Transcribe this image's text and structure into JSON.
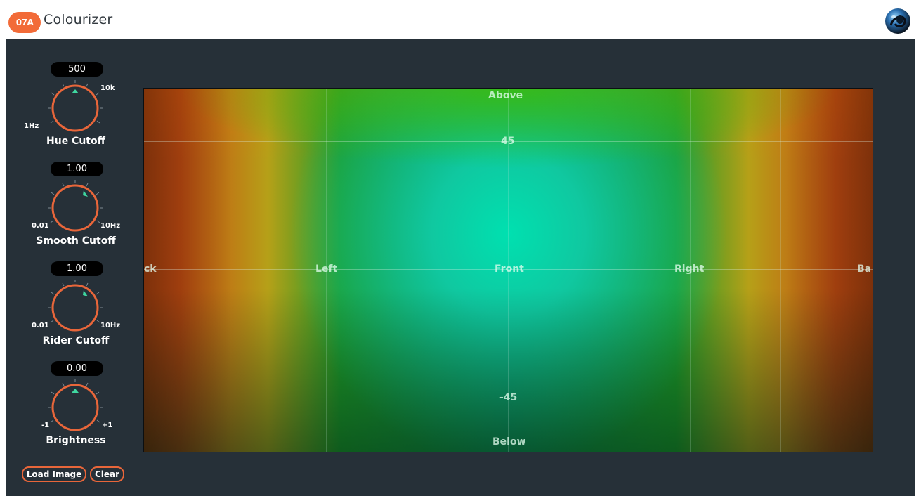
{
  "titlebar": {
    "logo_text": "07A",
    "title": "Colourizer"
  },
  "knobs": [
    {
      "id": "hue-cutoff",
      "value": "500",
      "min": "1Hz",
      "max": "10k",
      "label": "Hue Cutoff",
      "position": 0.5
    },
    {
      "id": "smooth-cutoff",
      "value": "1.00",
      "min": "0.01",
      "max": "10Hz",
      "label": "Smooth Cutoff",
      "position": 0.67
    },
    {
      "id": "rider-cutoff",
      "value": "1.00",
      "min": "0.01",
      "max": "10Hz",
      "label": "Rider Cutoff",
      "position": 0.67
    },
    {
      "id": "brightness",
      "value": "0.00",
      "min": "-1",
      "max": "+1",
      "label": "Brightness",
      "position": 0.5
    }
  ],
  "buttons": {
    "load_image": "Load Image",
    "clear": "Clear"
  },
  "display": {
    "labels": {
      "above": "Above",
      "plus45": "45",
      "back_left": "ck",
      "left": "Left",
      "front": "Front",
      "right": "Right",
      "back_right": "Ba",
      "minus45": "-45",
      "below": "Below"
    }
  },
  "colors": {
    "accent": "#e8663a",
    "panel": "#263038",
    "knob_indicator": "#3fd6a0"
  }
}
